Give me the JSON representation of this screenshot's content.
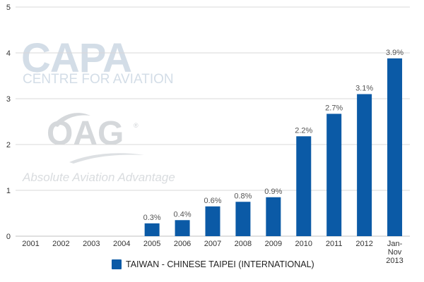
{
  "watermarks": {
    "capa": "CAPA",
    "capa_sub": "CENTRE FOR AVIATION",
    "oag": "OAG",
    "oag_reg": "®",
    "oag_tagline": "Absolute Aviation Advantage"
  },
  "colors": {
    "bar": "#0b5aa6",
    "grid": "#d8d8d8",
    "axis": "#c0c0c0",
    "tick_text": "#333333",
    "data_label_text": "#555555"
  },
  "chart_data": {
    "type": "bar",
    "categories": [
      "2001",
      "2002",
      "2003",
      "2004",
      "2005",
      "2006",
      "2007",
      "2008",
      "2009",
      "2010",
      "2011",
      "2012",
      "Jan-Nov 2013"
    ],
    "category_label_lines": [
      [
        "2001"
      ],
      [
        "2002"
      ],
      [
        "2003"
      ],
      [
        "2004"
      ],
      [
        "2005"
      ],
      [
        "2006"
      ],
      [
        "2007"
      ],
      [
        "2008"
      ],
      [
        "2009"
      ],
      [
        "2010"
      ],
      [
        "2011"
      ],
      [
        "2012"
      ],
      [
        "Jan-",
        "Nov",
        "2013"
      ]
    ],
    "series": [
      {
        "name": "TAIWAN - CHINESE TAIPEI (INTERNATIONAL)",
        "values": [
          0,
          0,
          0,
          0,
          0.28,
          0.35,
          0.65,
          0.75,
          0.85,
          2.18,
          2.67,
          3.1,
          3.88
        ],
        "labels": [
          "",
          "",
          "",
          "",
          "0.3%",
          "0.4%",
          "0.6%",
          "0.8%",
          "0.9%",
          "2.2%",
          "2.7%",
          "3.1%",
          "3.9%"
        ]
      }
    ],
    "ylim": [
      0,
      5
    ],
    "yticks": [
      "0",
      "1",
      "2",
      "3",
      "4",
      "5"
    ],
    "grid": true,
    "legend_position": "bottom"
  }
}
